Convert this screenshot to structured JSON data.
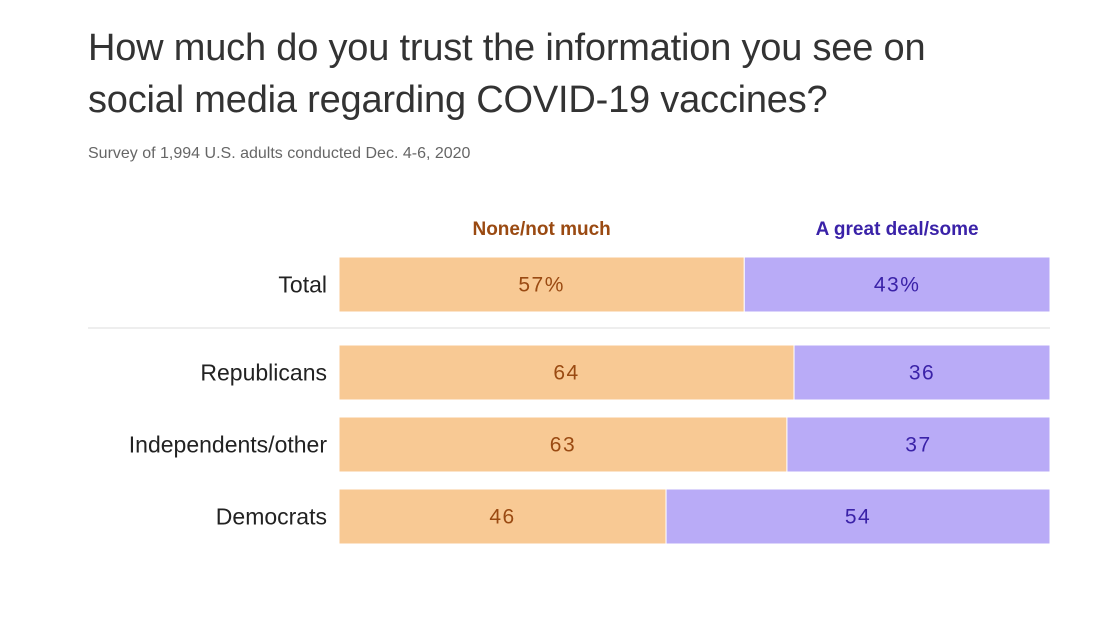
{
  "title": "How much do you trust the information you see on social media regarding COVID-19 vaccines?",
  "subtitle": "Survey of 1,994 U.S. adults conducted Dec. 4-6, 2020",
  "colors": {
    "none_fill": "#f8c994",
    "none_text": "#9a4a12",
    "great_fill": "#b9abf7",
    "great_text": "#3a22a8",
    "divider": "#dddddd"
  },
  "chart_data": {
    "type": "bar",
    "orientation": "horizontal-stacked-100",
    "series": [
      {
        "name": "None/not much",
        "values": [
          57,
          64,
          63,
          46
        ]
      },
      {
        "name": "A great deal/some",
        "values": [
          43,
          36,
          37,
          54
        ]
      }
    ],
    "categories": [
      "Total",
      "Republicans",
      "Independents/other",
      "Democrats"
    ],
    "value_labels": [
      [
        "57%",
        "43%"
      ],
      [
        "64",
        "36"
      ],
      [
        "63",
        "37"
      ],
      [
        "46",
        "54"
      ]
    ],
    "xlim": [
      0,
      100
    ]
  }
}
